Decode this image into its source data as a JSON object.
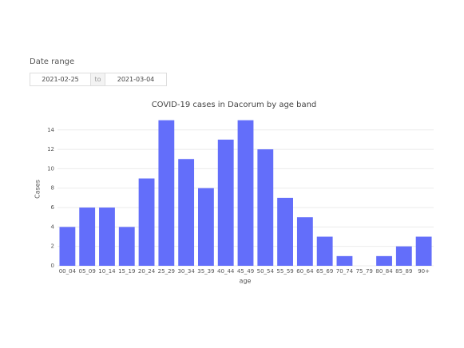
{
  "date_range": {
    "label": "Date range",
    "start": "2021-02-25",
    "separator": "to",
    "end": "2021-03-04"
  },
  "chart_data": {
    "type": "bar",
    "title": "COVID-19 cases in Dacorum by age band",
    "x_label": "age",
    "y_label": "Cases",
    "categories": [
      "00_04",
      "05_09",
      "10_14",
      "15_19",
      "20_24",
      "25_29",
      "30_34",
      "35_39",
      "40_44",
      "45_49",
      "50_54",
      "55_59",
      "60_64",
      "65_69",
      "70_74",
      "75_79",
      "80_84",
      "85_89",
      "90+"
    ],
    "values": [
      4,
      6,
      6,
      4,
      9,
      15,
      11,
      8,
      13,
      15,
      12,
      7,
      5,
      3,
      1,
      0,
      1,
      2,
      3
    ],
    "color": "#636efa",
    "ylim": [
      0,
      15.79
    ],
    "yticks": [
      0,
      2,
      4,
      6,
      8,
      10,
      12,
      14
    ],
    "grid": true
  }
}
